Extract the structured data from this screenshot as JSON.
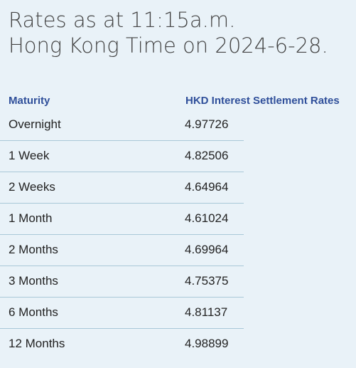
{
  "title": {
    "line1": "Rates as at 11:15a.m.",
    "line2": "Hong Kong Time on 2024-6-28."
  },
  "table": {
    "headers": {
      "maturity": "Maturity",
      "rate": "HKD Interest Settlement Rates"
    },
    "rows": [
      {
        "maturity": "Overnight",
        "rate": "4.97726"
      },
      {
        "maturity": "1 Week",
        "rate": "4.82506"
      },
      {
        "maturity": "2 Weeks",
        "rate": "4.64964"
      },
      {
        "maturity": "1 Month",
        "rate": "4.61024"
      },
      {
        "maturity": "2 Months",
        "rate": "4.69964"
      },
      {
        "maturity": "3 Months",
        "rate": "4.75375"
      },
      {
        "maturity": "6 Months",
        "rate": "4.81137"
      },
      {
        "maturity": "12 Months",
        "rate": "4.98899"
      }
    ]
  },
  "colors": {
    "background": "#e9f2f8",
    "header_text": "#2f4f9a",
    "divider": "#a9c8d8"
  }
}
